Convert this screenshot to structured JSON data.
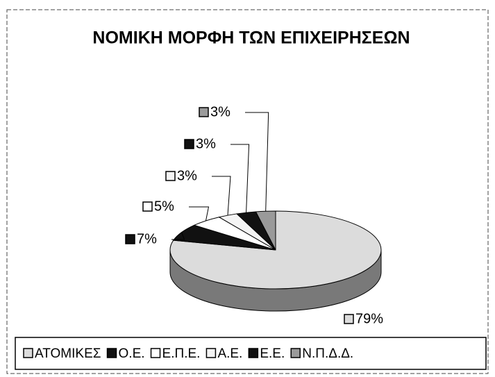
{
  "chart_data": {
    "type": "pie",
    "title": "ΝΟΜΙΚΗ ΜΟΡΦΗ ΤΩΝ ΕΠΙΧΕΙΡΗΣΕΩΝ",
    "categories": [
      "ΑΤΟΜΙΚΕΣ",
      "Ο.Ε.",
      "Ε.Π.Ε.",
      "Α.Ε.",
      "Ε.Ε.",
      "Ν.Π.Δ.Δ."
    ],
    "values": [
      79,
      7,
      5,
      3,
      3,
      3
    ],
    "value_labels": [
      "79%",
      "7%",
      "5%",
      "3%",
      "3%",
      "3%"
    ],
    "colors": [
      "#dcdcdc",
      "#111111",
      "#ffffff",
      "#f4f4f4",
      "#111111",
      "#9a9a9a"
    ],
    "legend": "bottom"
  }
}
